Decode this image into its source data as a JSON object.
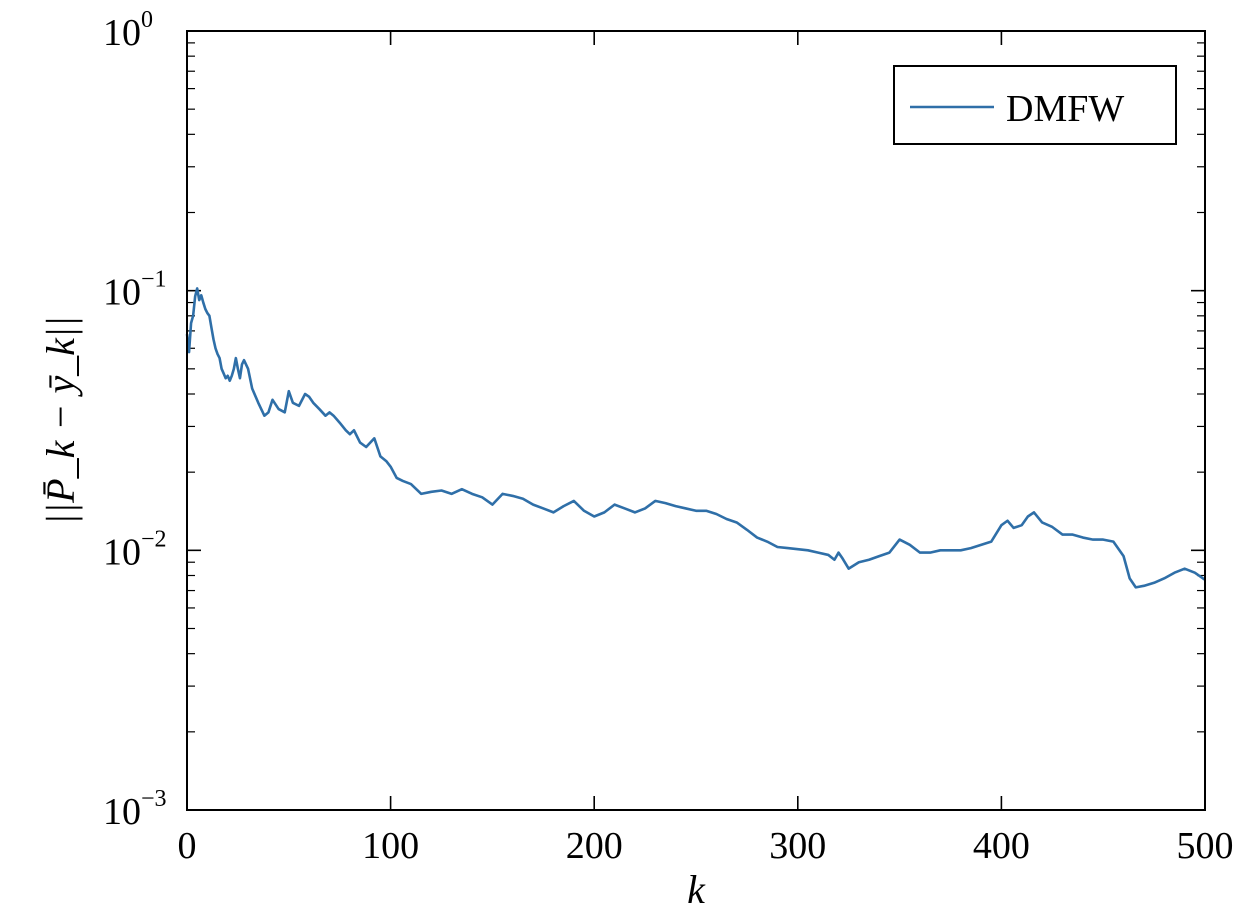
{
  "chart_data": {
    "type": "line",
    "title": "",
    "xlabel": "k",
    "ylabel": "||P̄_k − ȳ_k||",
    "xlim": [
      0,
      500
    ],
    "ylim": [
      0.001,
      1
    ],
    "yscale": "log",
    "grid": false,
    "legend_position": "top-right",
    "x_ticks": [
      "0",
      "100",
      "200",
      "300",
      "400",
      "500"
    ],
    "y_ticks": [
      {
        "base": "10",
        "exp": "0"
      },
      {
        "base": "10",
        "exp": "−1"
      },
      {
        "base": "10",
        "exp": "−2"
      },
      {
        "base": "10",
        "exp": "−3"
      }
    ],
    "series": [
      {
        "name": "DMFW",
        "color": "#2f6fa8",
        "x": [
          0,
          1,
          2,
          3,
          4,
          5,
          6,
          7,
          8,
          9,
          10,
          11,
          12,
          13,
          14,
          15,
          16,
          17,
          18,
          19,
          20,
          21,
          22,
          23,
          24,
          25,
          26,
          27,
          28,
          30,
          32,
          35,
          38,
          40,
          42,
          45,
          48,
          50,
          52,
          55,
          58,
          60,
          62,
          65,
          68,
          70,
          72,
          75,
          78,
          80,
          82,
          85,
          88,
          90,
          92,
          95,
          98,
          100,
          103,
          106,
          110,
          115,
          120,
          125,
          130,
          135,
          140,
          145,
          150,
          155,
          160,
          165,
          170,
          175,
          180,
          185,
          190,
          195,
          200,
          205,
          210,
          215,
          220,
          225,
          230,
          235,
          240,
          245,
          250,
          255,
          260,
          265,
          270,
          275,
          280,
          285,
          290,
          295,
          300,
          305,
          310,
          315,
          318,
          320,
          322,
          325,
          330,
          335,
          340,
          345,
          350,
          355,
          360,
          365,
          370,
          375,
          380,
          385,
          390,
          395,
          400,
          403,
          406,
          410,
          413,
          416,
          420,
          425,
          430,
          435,
          440,
          445,
          450,
          455,
          460,
          463,
          466,
          470,
          475,
          480,
          485,
          490,
          495,
          500
        ],
        "y": [
          0.068,
          0.058,
          0.075,
          0.08,
          0.095,
          0.102,
          0.092,
          0.096,
          0.09,
          0.085,
          0.082,
          0.08,
          0.072,
          0.065,
          0.06,
          0.057,
          0.055,
          0.05,
          0.048,
          0.046,
          0.047,
          0.045,
          0.047,
          0.05,
          0.055,
          0.05,
          0.046,
          0.052,
          0.054,
          0.05,
          0.042,
          0.037,
          0.033,
          0.034,
          0.038,
          0.035,
          0.034,
          0.041,
          0.037,
          0.036,
          0.04,
          0.039,
          0.037,
          0.035,
          0.033,
          0.034,
          0.033,
          0.031,
          0.029,
          0.028,
          0.029,
          0.026,
          0.025,
          0.026,
          0.027,
          0.023,
          0.022,
          0.021,
          0.019,
          0.0185,
          0.018,
          0.0165,
          0.0168,
          0.017,
          0.0165,
          0.0172,
          0.0165,
          0.016,
          0.015,
          0.0165,
          0.0162,
          0.0158,
          0.015,
          0.0145,
          0.014,
          0.0148,
          0.0155,
          0.0142,
          0.0135,
          0.014,
          0.015,
          0.0145,
          0.014,
          0.0145,
          0.0155,
          0.0152,
          0.0148,
          0.0145,
          0.0142,
          0.0142,
          0.0138,
          0.0132,
          0.0128,
          0.012,
          0.0112,
          0.0108,
          0.0103,
          0.0102,
          0.0101,
          0.01,
          0.0098,
          0.0096,
          0.0092,
          0.0098,
          0.0093,
          0.0085,
          0.009,
          0.0092,
          0.0095,
          0.0098,
          0.011,
          0.0105,
          0.0098,
          0.0098,
          0.01,
          0.01,
          0.01,
          0.0102,
          0.0105,
          0.0108,
          0.0125,
          0.013,
          0.0122,
          0.0125,
          0.0135,
          0.014,
          0.0128,
          0.0123,
          0.0115,
          0.0115,
          0.0112,
          0.011,
          0.011,
          0.0108,
          0.0095,
          0.0078,
          0.0072,
          0.0073,
          0.0075,
          0.0078,
          0.0082,
          0.0085,
          0.0082,
          0.0077
        ]
      }
    ]
  }
}
